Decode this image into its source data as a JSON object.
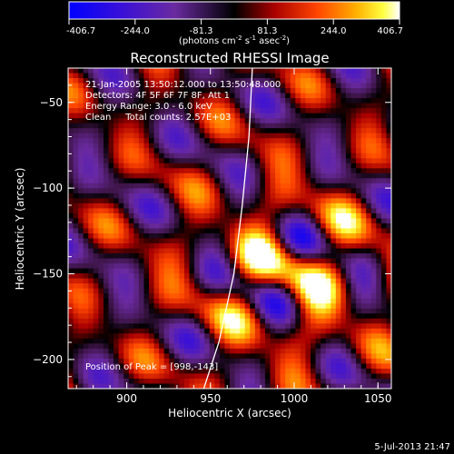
{
  "chart_data": {
    "type": "heatmap",
    "title": "Reconstructed RHESSI Image",
    "xlabel": "Heliocentric X (arcsec)",
    "ylabel": "Heliocentric Y (arcsec)",
    "xlim": [
      865,
      1058
    ],
    "ylim": [
      -217,
      -30
    ],
    "xticks": [
      900,
      950,
      1000,
      1050
    ],
    "yticks": [
      -50,
      -100,
      -150,
      -200
    ],
    "colorbar": {
      "min": -406.7,
      "max": 406.7,
      "ticks": [
        "-406.7",
        "-244.0",
        "-81.3",
        "81.3",
        "244.0",
        "406.7"
      ],
      "unit": "(photons cm",
      "unit_sup1": "-2",
      "unit_mid": " s",
      "unit_sup2": "-1",
      "unit_mid2": " asec",
      "unit_sup3": "-2",
      "unit_end": ")"
    },
    "annotations": [
      "21-Jan-2005 13:50:12.000 to 13:50:48.000",
      "Detectors: 4F 5F 6F 7F 8F, Att 1",
      "Energy Range: 3.0 - 6.0 keV",
      "Clean     Total counts: 2.57E+03"
    ],
    "peak_label": "Position of Peak = [998,-143]",
    "limb_line": [
      [
        946,
        -217
      ],
      [
        955,
        -190
      ],
      [
        964,
        -150
      ],
      [
        969,
        -110
      ],
      [
        973,
        -70
      ],
      [
        975,
        -30
      ]
    ],
    "grid": false,
    "colormap": "rhessi-blue-purple-black-red-yellow-white"
  },
  "footer": {
    "date": "5-Jul-2013 21:47"
  }
}
